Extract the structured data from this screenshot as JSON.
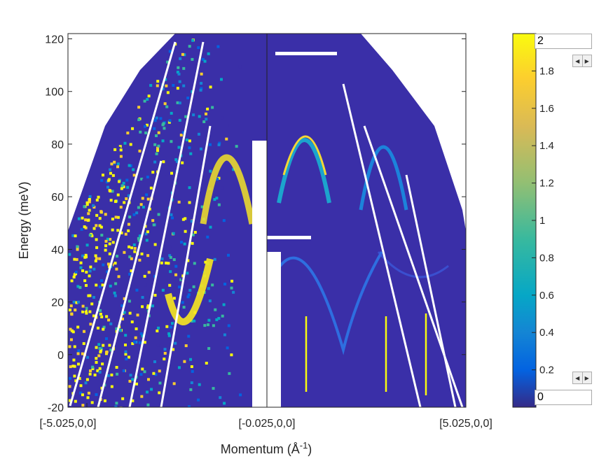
{
  "chart_data": {
    "type": "heatmap",
    "title": "",
    "xlabel": "Momentum (Å",
    "xlabel_sup": "-1",
    "xlabel_end": ")",
    "ylabel": "Energy (meV)",
    "x_ticks": [
      "[-5.025,0,0]",
      "[-0.025,0,0]",
      "[5.025,0,0]"
    ],
    "xlim": [
      -5.025,
      5.025
    ],
    "y_ticks": [
      -20,
      0,
      20,
      40,
      60,
      80,
      100,
      120
    ],
    "ylim": [
      -20,
      122
    ],
    "colorbar": {
      "colormap": "parula",
      "ticks": [
        0.2,
        0.4,
        0.6,
        0.8,
        1,
        1.2,
        1.4,
        1.6,
        1.8,
        2
      ],
      "tick_labels_shown": [
        "0.2",
        "0.4",
        "0.6",
        "0.8",
        "1",
        "1.2",
        "1.4",
        "1.6",
        "1.8"
      ],
      "clim": [
        0,
        2
      ]
    },
    "features": {
      "left_half": "noisy high-intensity (yellow) scattering at low momentum side, saturated intensity near -5 to -2",
      "right_half": "dispersive magnon-like bands peaking near 87 meV and dipping near 0 meV",
      "branches_right": [
        {
          "x": [
            0.5,
            1.0,
            1.5,
            2.0
          ],
          "y": [
            50,
            80,
            87,
            80
          ]
        },
        {
          "x": [
            0.3,
            1.0,
            1.9,
            2.5
          ],
          "y": [
            40,
            35,
            0,
            40
          ]
        },
        {
          "x": [
            2.5,
            3.0,
            3.5
          ],
          "y": [
            55,
            87,
            55
          ]
        }
      ]
    }
  },
  "controls": {
    "clim_max_value": "2",
    "clim_min_value": "0",
    "top_label": "2",
    "bottom_label": "0",
    "spin_left": "◀",
    "spin_right": "▶"
  }
}
